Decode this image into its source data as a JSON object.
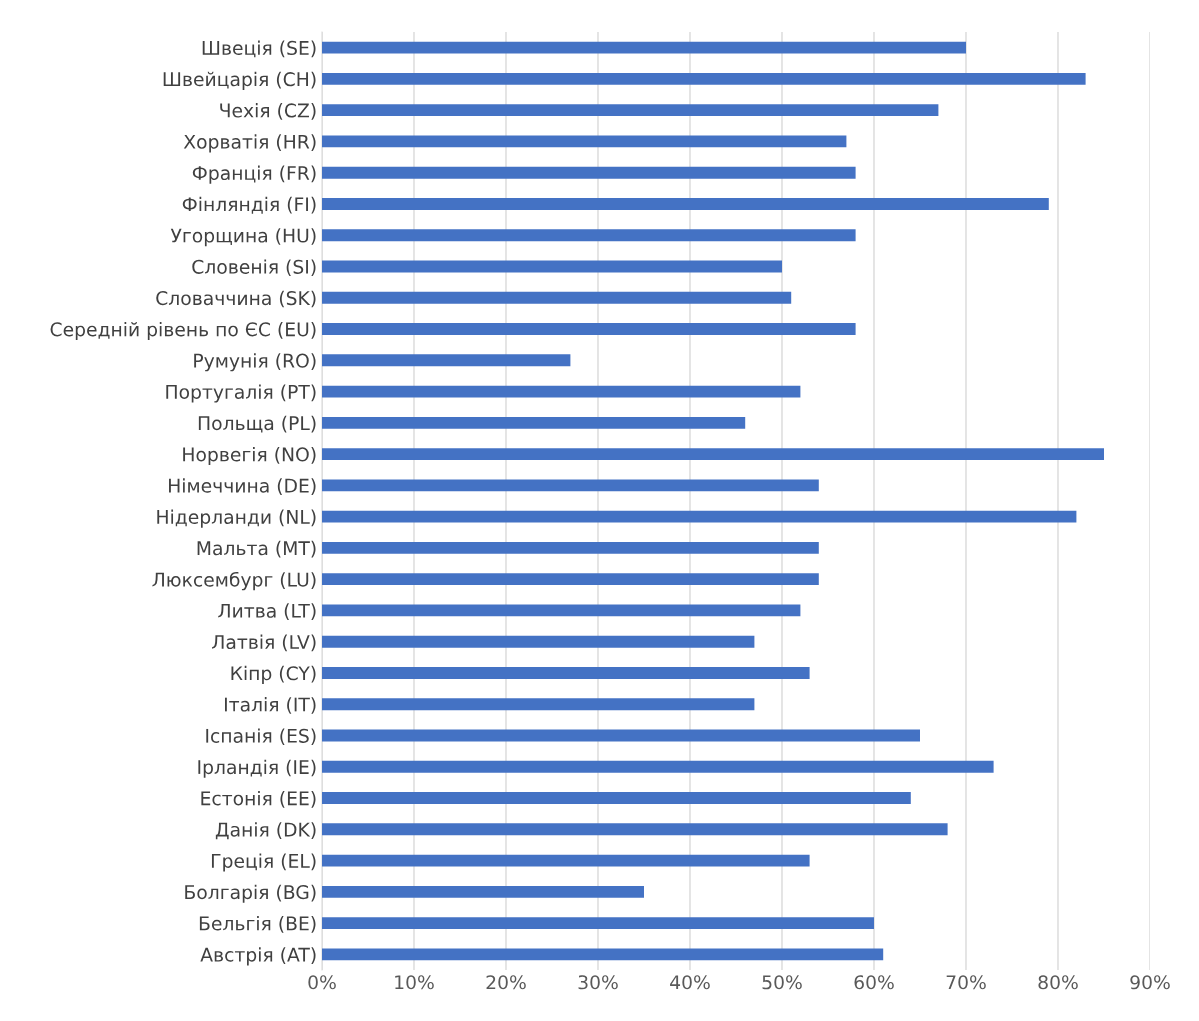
{
  "chart_data": {
    "type": "bar",
    "orientation": "horizontal",
    "categories": [
      "Швеція (SE)",
      "Швейцарія (CH)",
      "Чехія (CZ)",
      "Хорватія (HR)",
      "Франція (FR)",
      "Фінляндія (FI)",
      "Угорщина (HU)",
      "Словенія (SI)",
      "Словаччина (SK)",
      "Середній рівень по ЄС (EU)",
      "Румунія (RO)",
      "Португалія (PT)",
      "Польща (PL)",
      "Норвегія (NO)",
      "Німеччина (DE)",
      "Нідерланди (NL)",
      "Мальта (MT)",
      "Люксембург (LU)",
      "Литва (LT)",
      "Латвія (LV)",
      "Кіпр (CY)",
      "Італія (IT)",
      "Іспанія (ES)",
      "Ірландія (IE)",
      "Естонія (EE)",
      "Данія (DK)",
      "Греція (EL)",
      "Болгарія (BG)",
      "Бельгія (BE)",
      "Австрія (AT)"
    ],
    "values": [
      70,
      83,
      67,
      57,
      58,
      79,
      58,
      50,
      51,
      58,
      27,
      52,
      46,
      85,
      54,
      82,
      54,
      54,
      52,
      47,
      53,
      47,
      65,
      73,
      64,
      68,
      53,
      35,
      60,
      61
    ],
    "color": "#4472c4",
    "xlim": [
      0,
      90
    ],
    "xticks": [
      {
        "value": 0,
        "label": "0%"
      },
      {
        "value": 10,
        "label": "10%"
      },
      {
        "value": 20,
        "label": "20%"
      },
      {
        "value": 30,
        "label": "30%"
      },
      {
        "value": 40,
        "label": "40%"
      },
      {
        "value": 50,
        "label": "50%"
      },
      {
        "value": 60,
        "label": "60%"
      },
      {
        "value": 70,
        "label": "70%"
      },
      {
        "value": 80,
        "label": "80%"
      },
      {
        "value": 90,
        "label": "90%"
      }
    ],
    "grid": "x",
    "legend": false
  }
}
